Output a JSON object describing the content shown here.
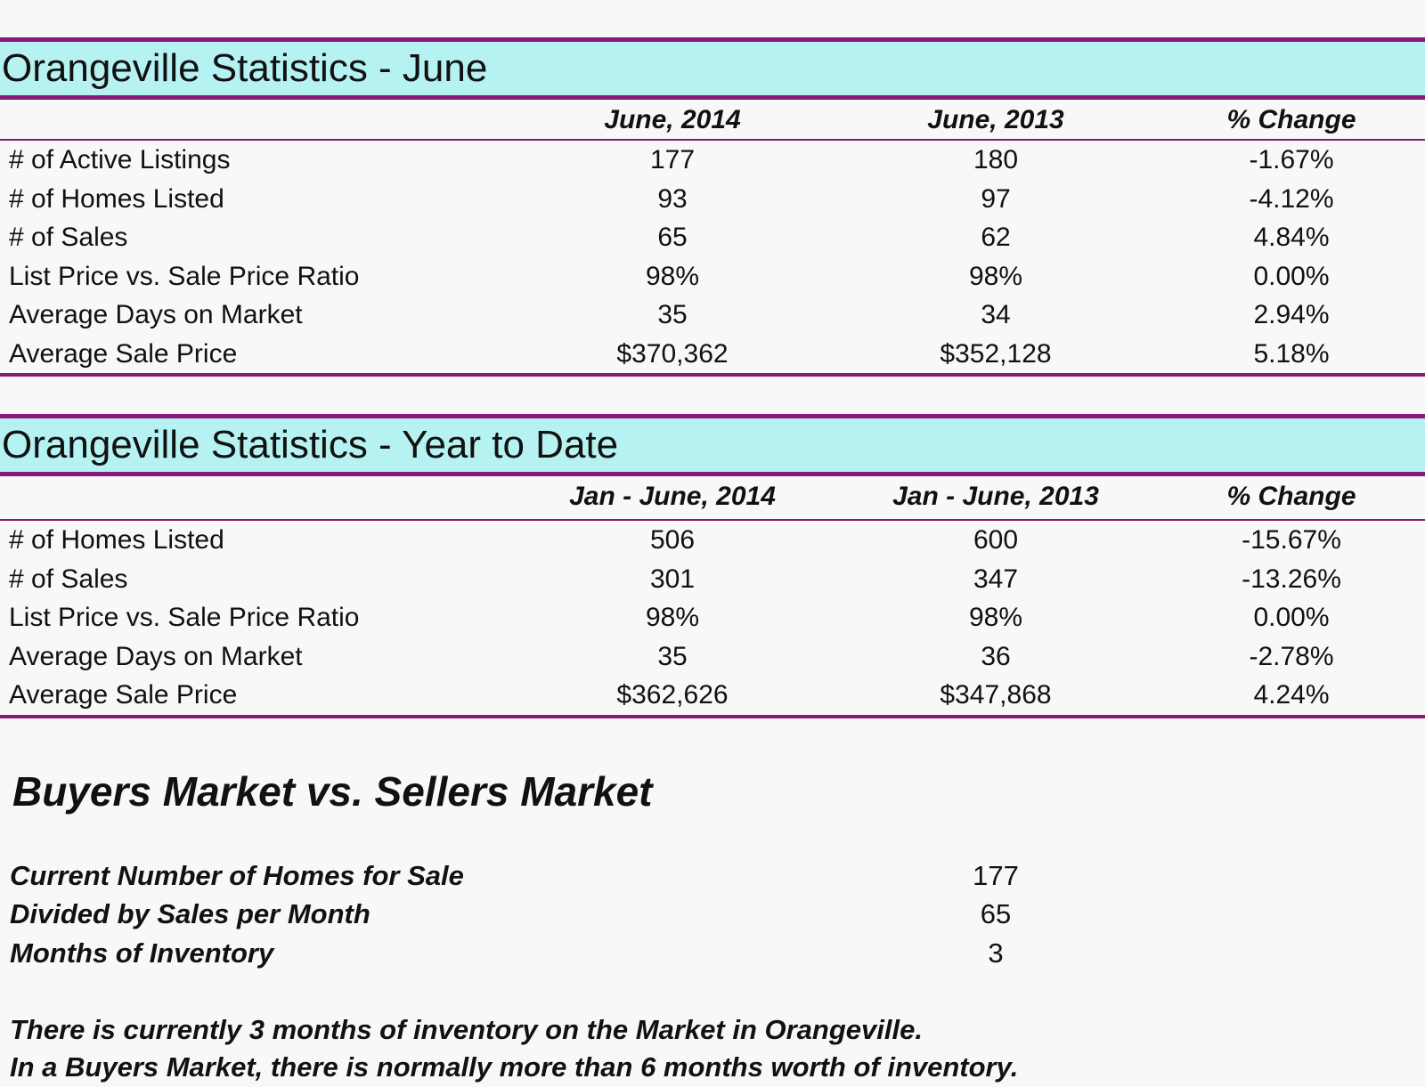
{
  "june": {
    "title": "Orangeville Statistics - June",
    "headers": [
      "",
      "June, 2014",
      "June, 2013",
      "% Change"
    ],
    "rows": [
      [
        "# of Active Listings",
        "177",
        "180",
        "-1.67%"
      ],
      [
        "# of Homes Listed",
        "93",
        "97",
        "-4.12%"
      ],
      [
        "# of Sales",
        "65",
        "62",
        "4.84%"
      ],
      [
        "List Price vs. Sale Price Ratio",
        "98%",
        "98%",
        "0.00%"
      ],
      [
        "Average Days on Market",
        "35",
        "34",
        "2.94%"
      ],
      [
        "Average Sale Price",
        "$370,362",
        "$352,128",
        "5.18%"
      ]
    ]
  },
  "ytd": {
    "title": "Orangeville Statistics - Year to Date",
    "headers": [
      "",
      "Jan - June, 2014",
      "Jan - June, 2013",
      "% Change"
    ],
    "rows": [
      [
        "# of Homes Listed",
        "506",
        "600",
        "-15.67%"
      ],
      [
        "# of Sales",
        "301",
        "347",
        "-13.26%"
      ],
      [
        "List Price vs. Sale Price Ratio",
        "98%",
        "98%",
        "0.00%"
      ],
      [
        "Average Days on Market",
        "35",
        "36",
        "-2.78%"
      ],
      [
        "Average Sale Price",
        "$362,626",
        "$347,868",
        "4.24%"
      ]
    ]
  },
  "market": {
    "title": "Buyers Market vs. Sellers Market",
    "items": [
      {
        "label": "Current Number of Homes for Sale",
        "value": "177"
      },
      {
        "label": "Divided by Sales per Month",
        "value": "65"
      },
      {
        "label": "Months of Inventory",
        "value": "3"
      }
    ],
    "notes": [
      "There is currently 3 months of inventory on the Market in Orangeville.",
      "In a Buyers Market, there is normally more than 6 months worth of inventory."
    ]
  }
}
